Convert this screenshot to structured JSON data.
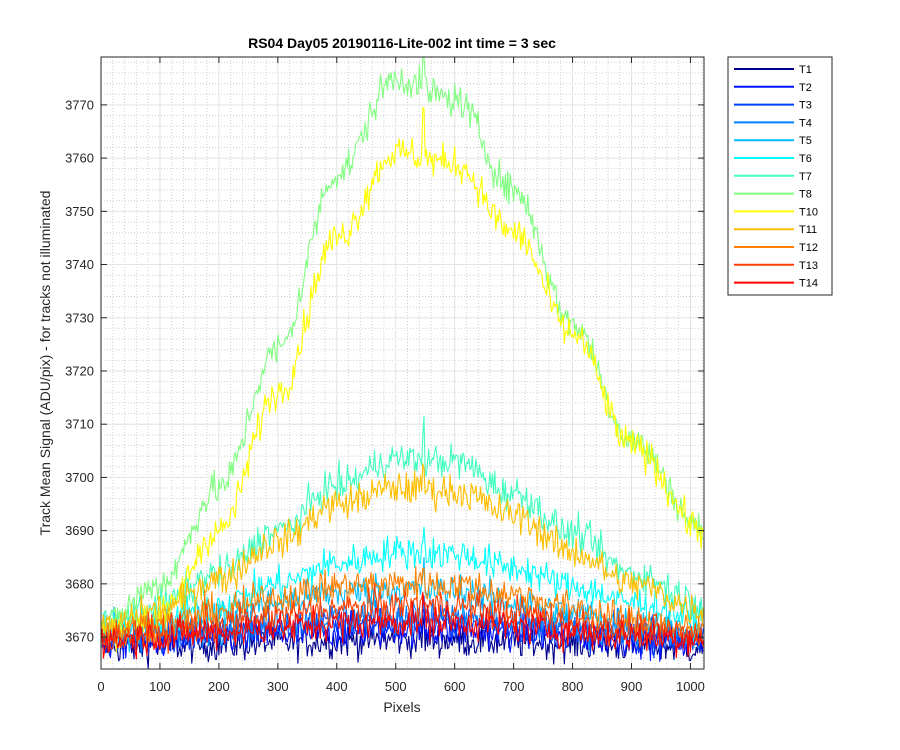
{
  "chart_data": {
    "type": "line",
    "title": "RS04 Day05 20190116-Lite-002 int time = 3 sec",
    "xlabel": "Pixels",
    "ylabel": "Track Mean Signal (ADU/pix) - for tracks not illuminated",
    "xlim": [
      0,
      1023
    ],
    "ylim": [
      3664,
      3779
    ],
    "xticks": [
      0,
      100,
      200,
      300,
      400,
      500,
      600,
      700,
      800,
      900,
      1000
    ],
    "yticks": [
      3670,
      3680,
      3690,
      3700,
      3710,
      3720,
      3730,
      3740,
      3750,
      3760,
      3770
    ],
    "grid": true,
    "minor_grid": true,
    "legend_position": "outside-top-right",
    "spike_x": 547,
    "series": [
      {
        "name": "T1",
        "color": "#00008f",
        "x": [
          0,
          100,
          200,
          300,
          400,
          500,
          600,
          700,
          800,
          900,
          1023
        ],
        "y": [
          3668,
          3668.3,
          3668.6,
          3669,
          3669.3,
          3669.6,
          3669.4,
          3669.1,
          3668.8,
          3668.4,
          3668
        ],
        "noise": 1.6
      },
      {
        "name": "T2",
        "color": "#0010ff",
        "x": [
          0,
          100,
          200,
          300,
          400,
          500,
          600,
          700,
          800,
          900,
          1023
        ],
        "y": [
          3669,
          3669.4,
          3669.9,
          3670.5,
          3671,
          3671.5,
          3671.3,
          3670.8,
          3670.2,
          3669.6,
          3669
        ],
        "noise": 1.6
      },
      {
        "name": "T3",
        "color": "#0040ff",
        "x": [
          0,
          100,
          200,
          300,
          400,
          500,
          600,
          700,
          800,
          900,
          1023
        ],
        "y": [
          3669.5,
          3670,
          3670.8,
          3671.7,
          3672.5,
          3673,
          3672.8,
          3672,
          3671.1,
          3670.3,
          3669.6
        ],
        "noise": 1.6
      },
      {
        "name": "T4",
        "color": "#0080ff",
        "x": [
          0,
          100,
          200,
          300,
          400,
          500,
          600,
          700,
          800,
          900,
          1023
        ],
        "y": [
          3670,
          3670.6,
          3671.6,
          3672.7,
          3673.6,
          3674,
          3673.8,
          3672.9,
          3671.8,
          3670.9,
          3670
        ],
        "noise": 1.6
      },
      {
        "name": "T5",
        "color": "#00bfff",
        "x": [
          0,
          100,
          200,
          300,
          400,
          500,
          600,
          700,
          800,
          900,
          1023
        ],
        "y": [
          3671,
          3672,
          3674,
          3676.5,
          3678.3,
          3679,
          3678.6,
          3676.5,
          3674.5,
          3672.6,
          3671
        ],
        "noise": 1.6
      },
      {
        "name": "T6",
        "color": "#00ffff",
        "x": [
          0,
          100,
          200,
          300,
          400,
          500,
          600,
          700,
          800,
          900,
          1023
        ],
        "y": [
          3671.5,
          3673,
          3676,
          3680,
          3683.8,
          3686,
          3685.6,
          3683,
          3679.5,
          3676.5,
          3673.5
        ],
        "noise": 1.6
      },
      {
        "name": "T7",
        "color": "#40ffbf",
        "x": [
          0,
          100,
          200,
          300,
          400,
          500,
          600,
          700,
          800,
          900,
          1023
        ],
        "y": [
          3672.5,
          3676,
          3682,
          3690,
          3698.5,
          3703.5,
          3703,
          3697,
          3689.5,
          3682,
          3676.5
        ],
        "noise": 1.6
      },
      {
        "name": "T8",
        "color": "#80ff80",
        "x": [
          0,
          100,
          200,
          300,
          400,
          500,
          600,
          700,
          800,
          900,
          1023
        ],
        "y": [
          3672,
          3680,
          3698,
          3724,
          3757,
          3775,
          3771,
          3754,
          3729,
          3707,
          3690
        ],
        "noise": 1.6
      },
      {
        "name": "T10",
        "color": "#ffff00",
        "x": [
          0,
          100,
          200,
          300,
          400,
          500,
          600,
          700,
          800,
          900,
          1023
        ],
        "y": [
          3671,
          3674,
          3690,
          3716,
          3745,
          3761,
          3759,
          3746,
          3727,
          3706,
          3690
        ],
        "noise": 1.6
      },
      {
        "name": "T11",
        "color": "#ffbf00",
        "x": [
          0,
          100,
          200,
          300,
          400,
          500,
          600,
          700,
          800,
          900,
          1023
        ],
        "y": [
          3671.5,
          3675,
          3681,
          3688,
          3695,
          3698,
          3697.5,
          3693,
          3686,
          3680,
          3675
        ],
        "noise": 1.6
      },
      {
        "name": "T12",
        "color": "#ff8000",
        "x": [
          0,
          100,
          200,
          300,
          400,
          500,
          600,
          700,
          800,
          900,
          1023
        ],
        "y": [
          3670.5,
          3672.2,
          3674.8,
          3677.5,
          3679.5,
          3680,
          3679.8,
          3678,
          3675.5,
          3673,
          3671
        ],
        "noise": 1.6
      },
      {
        "name": "T13",
        "color": "#ff4000",
        "x": [
          0,
          100,
          200,
          300,
          400,
          500,
          600,
          700,
          800,
          900,
          1023
        ],
        "y": [
          3670,
          3671,
          3672.5,
          3674,
          3675.3,
          3676,
          3675.8,
          3674.6,
          3673,
          3671.5,
          3670.3
        ],
        "noise": 1.6
      },
      {
        "name": "T14",
        "color": "#ff0000",
        "x": [
          0,
          100,
          200,
          300,
          400,
          500,
          600,
          700,
          800,
          900,
          1023
        ],
        "y": [
          3669.5,
          3670.1,
          3670.9,
          3671.8,
          3672.5,
          3673,
          3672.8,
          3672,
          3671,
          3670.3,
          3669.7
        ],
        "noise": 1.6
      }
    ]
  }
}
